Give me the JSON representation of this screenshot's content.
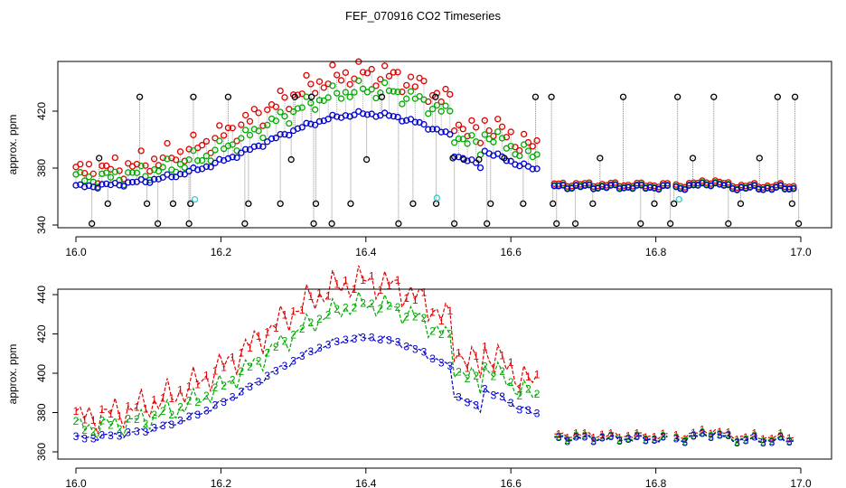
{
  "title": "FEF_070916  CO2 Timeseries",
  "chart_data": [
    {
      "type": "scatter",
      "ylabel": "approx. ppm",
      "xlim": [
        16.0,
        17.0
      ],
      "ylim": [
        338,
        438
      ],
      "xticks": [
        "16.0",
        "16.2",
        "16.4",
        "16.6",
        "16.8",
        "17.0"
      ],
      "yticks": [
        "340",
        "380",
        "420"
      ],
      "grid": false,
      "colors": {
        "s1": "#e00000",
        "s2": "#00aa00",
        "s3": "#0000cc",
        "s0": "#000000",
        "s4": "#33cccc",
        "drop": "#888888"
      },
      "s0_high": [
        [
          16.088,
          430
        ],
        [
          16.162,
          430
        ],
        [
          16.21,
          430
        ],
        [
          16.302,
          430
        ],
        [
          16.325,
          430
        ],
        [
          16.422,
          430
        ],
        [
          16.496,
          430
        ],
        [
          16.634,
          430
        ],
        [
          16.656,
          430
        ],
        [
          16.755,
          430
        ],
        [
          16.83,
          430
        ],
        [
          16.88,
          430
        ],
        [
          16.968,
          430
        ],
        [
          16.992,
          430
        ]
      ],
      "s0_mid": [
        [
          16.032,
          387
        ],
        [
          16.52,
          387
        ],
        [
          16.591,
          387
        ],
        [
          16.723,
          387
        ],
        [
          16.851,
          387
        ],
        [
          16.943,
          387
        ],
        [
          16.297,
          386
        ],
        [
          16.401,
          386
        ],
        [
          16.535,
          386
        ],
        [
          16.556,
          386
        ]
      ],
      "s0_low": [
        [
          16.044,
          355
        ],
        [
          16.098,
          355
        ],
        [
          16.134,
          355
        ],
        [
          16.158,
          355
        ],
        [
          16.238,
          355
        ],
        [
          16.282,
          355
        ],
        [
          16.331,
          355
        ],
        [
          16.379,
          355
        ],
        [
          16.465,
          355
        ],
        [
          16.497,
          355
        ],
        [
          16.572,
          355
        ],
        [
          16.617,
          355
        ],
        [
          16.658,
          355
        ],
        [
          16.713,
          355
        ],
        [
          16.798,
          355
        ],
        [
          16.825,
          355
        ],
        [
          16.917,
          355
        ],
        [
          16.988,
          355
        ]
      ],
      "s0_min": [
        [
          16.022,
          341
        ],
        [
          16.113,
          341
        ],
        [
          16.156,
          341
        ],
        [
          16.233,
          341
        ],
        [
          16.328,
          341
        ],
        [
          16.353,
          341
        ],
        [
          16.445,
          341
        ],
        [
          16.522,
          341
        ],
        [
          16.567,
          341
        ],
        [
          16.663,
          341
        ],
        [
          16.689,
          341
        ],
        [
          16.779,
          341
        ],
        [
          16.82,
          341
        ],
        [
          16.9,
          341
        ],
        [
          16.997,
          341
        ]
      ],
      "s4": [
        [
          16.164,
          358
        ],
        [
          16.498,
          359
        ],
        [
          16.832,
          358
        ]
      ]
    },
    {
      "type": "line",
      "ylabel": "approx. ppm",
      "xlim": [
        16.0,
        17.0
      ],
      "ylim": [
        360,
        440
      ],
      "xticks": [
        "16.0",
        "16.2",
        "16.4",
        "16.6",
        "16.8",
        "17.0"
      ],
      "yticks": [
        "360",
        "380",
        "400",
        "420",
        "440"
      ],
      "grid": false,
      "markers": [
        "1",
        "2",
        "3"
      ],
      "gaps_x": [
        16.64,
        16.82
      ]
    }
  ]
}
